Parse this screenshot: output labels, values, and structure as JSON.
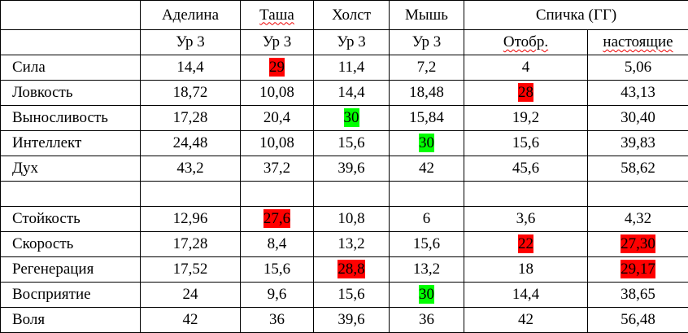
{
  "table": {
    "header": [
      "Аделина",
      "Таша",
      "Холст",
      "Мышь",
      "Спичка (ГГ)"
    ],
    "subheader": [
      "Ур 3",
      "Ур 3",
      "Ур 3",
      "Ур 3",
      "Отобр.",
      "настоящие"
    ],
    "groups": [
      [
        [
          "Сила",
          "14,4",
          {
            "text": "29",
            "highlight": "#ff0000"
          },
          "11,4",
          "7,2",
          "4",
          "5,06"
        ],
        [
          "Ловкость",
          "18,72",
          "10,08",
          "14,4",
          "18,48",
          {
            "text": "28",
            "highlight": "#ff0000"
          },
          "43,13"
        ],
        [
          "Выносливость",
          "17,28",
          "20,4",
          {
            "text": "30",
            "highlight": "#00ff00"
          },
          "15,84",
          "19,2",
          "30,40"
        ],
        [
          "Интеллект",
          "24,48",
          "10,08",
          "15,6",
          {
            "text": "30",
            "highlight": "#00ff00"
          },
          "15,6",
          "39,83"
        ],
        [
          "Дух",
          "43,2",
          "37,2",
          "39,6",
          "42",
          "45,6",
          "58,62"
        ]
      ],
      [
        [
          "Стойкость",
          "12,96",
          {
            "text": "27,6",
            "highlight": "#ff0000"
          },
          "10,8",
          "6",
          "3,6",
          "4,32"
        ],
        [
          "Скорость",
          "17,28",
          "8,4",
          "13,2",
          "15,6",
          {
            "text": "22",
            "highlight": "#ff0000"
          },
          {
            "text": "27,30",
            "highlight": "#ff0000"
          }
        ],
        [
          "Регенерация",
          "17,52",
          "15,6",
          {
            "text": "28,8",
            "highlight": "#ff0000"
          },
          "13,2",
          "18",
          {
            "text": "29,17",
            "highlight": "#ff0000"
          }
        ],
        [
          "Восприятие",
          "24",
          "9,6",
          "15,6",
          {
            "text": "30",
            "highlight": "#00ff00"
          },
          "14,4",
          "38,65"
        ],
        [
          "Воля",
          "42",
          "36",
          "39,6",
          "36",
          "42",
          "56,48"
        ]
      ]
    ]
  }
}
